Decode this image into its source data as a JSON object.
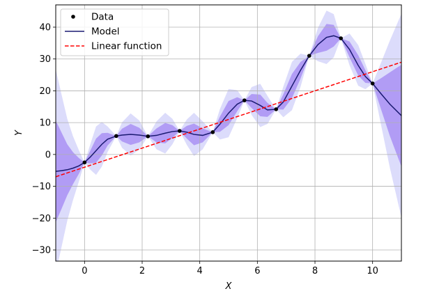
{
  "chart_data": {
    "type": "line",
    "xlabel": "X",
    "ylabel": "Y",
    "xlim": [
      -1,
      11
    ],
    "ylim": [
      -33.5,
      47
    ],
    "xticks": [
      0,
      2,
      4,
      6,
      8,
      10
    ],
    "yticks": [
      -30,
      -20,
      -10,
      0,
      10,
      20,
      30,
      40
    ],
    "grid": true,
    "legend_position": "top-left",
    "legend": [
      "Data",
      "Model",
      "Linear function"
    ],
    "series": [
      {
        "name": "Data",
        "kind": "scatter",
        "color": "#000000",
        "points": [
          [
            0,
            -2.5
          ],
          [
            1.1,
            5.8
          ],
          [
            2.2,
            5.7
          ],
          [
            3.3,
            7.4
          ],
          [
            4.45,
            7.0
          ],
          [
            5.55,
            17.0
          ],
          [
            6.65,
            14.2
          ],
          [
            7.8,
            31.0
          ],
          [
            8.9,
            36.5
          ],
          [
            10,
            22.3
          ]
        ]
      },
      {
        "name": "Model",
        "kind": "line",
        "color": "#191970",
        "points": [
          [
            -1,
            -5.3
          ],
          [
            -0.8,
            -5.1
          ],
          [
            -0.6,
            -4.8
          ],
          [
            -0.4,
            -4.3
          ],
          [
            -0.2,
            -3.6
          ],
          [
            0,
            -2.5
          ],
          [
            0.2,
            -0.8
          ],
          [
            0.4,
            1.2
          ],
          [
            0.6,
            3.2
          ],
          [
            0.8,
            4.8
          ],
          [
            1.1,
            5.8
          ],
          [
            1.3,
            6.1
          ],
          [
            1.6,
            6.3
          ],
          [
            1.9,
            6.1
          ],
          [
            2.2,
            5.7
          ],
          [
            2.5,
            6.0
          ],
          [
            2.8,
            6.7
          ],
          [
            3.05,
            7.2
          ],
          [
            3.3,
            7.4
          ],
          [
            3.55,
            7.0
          ],
          [
            3.8,
            6.3
          ],
          [
            4.1,
            6.0
          ],
          [
            4.45,
            7.0
          ],
          [
            4.7,
            9.5
          ],
          [
            5.0,
            13.0
          ],
          [
            5.3,
            15.8
          ],
          [
            5.55,
            17.0
          ],
          [
            5.8,
            16.8
          ],
          [
            6.1,
            15.4
          ],
          [
            6.35,
            14.0
          ],
          [
            6.65,
            14.2
          ],
          [
            6.9,
            16.5
          ],
          [
            7.2,
            21.5
          ],
          [
            7.5,
            26.5
          ],
          [
            7.8,
            31.0
          ],
          [
            8.1,
            34.5
          ],
          [
            8.4,
            36.8
          ],
          [
            8.65,
            37.3
          ],
          [
            8.9,
            36.5
          ],
          [
            9.2,
            33.0
          ],
          [
            9.5,
            28.0
          ],
          [
            9.75,
            24.5
          ],
          [
            10,
            22.3
          ],
          [
            10.3,
            19.0
          ],
          [
            10.6,
            15.8
          ],
          [
            11,
            12.2
          ]
        ]
      },
      {
        "name": "Linear function",
        "kind": "line",
        "style": "dashed",
        "color": "#ff0000",
        "points": [
          [
            -1,
            -7.0
          ],
          [
            11,
            29.0
          ]
        ]
      }
    ],
    "uncertainty_x": [
      -1,
      -0.8,
      -0.6,
      -0.4,
      -0.2,
      0,
      0.2,
      0.4,
      0.6,
      0.8,
      1.1,
      1.3,
      1.6,
      1.9,
      2.2,
      2.5,
      2.8,
      3.05,
      3.3,
      3.55,
      3.8,
      4.1,
      4.45,
      4.7,
      5.0,
      5.3,
      5.55,
      5.8,
      6.1,
      6.35,
      6.65,
      6.9,
      7.2,
      7.5,
      7.8,
      8.1,
      8.4,
      8.65,
      8.9,
      9.2,
      9.5,
      9.75,
      10,
      10.3,
      10.6,
      11
    ],
    "uncertainty_1sd": [
      16.0,
      12.0,
      8.0,
      5.0,
      2.5,
      0,
      2.0,
      3.8,
      3.5,
      2.0,
      0,
      2.0,
      3.3,
      2.3,
      0,
      2.2,
      3.2,
      2.0,
      0,
      2.0,
      3.4,
      2.2,
      0,
      2.4,
      3.8,
      2.2,
      0,
      2.2,
      3.4,
      2.2,
      0,
      2.4,
      3.8,
      2.6,
      0,
      2.6,
      4.2,
      3.4,
      0,
      2.5,
      3.2,
      2.0,
      0,
      5.0,
      10.0,
      16.0
    ],
    "band_colors": {
      "inner": "#b19cf5",
      "outer": "#dcdcfb"
    }
  }
}
